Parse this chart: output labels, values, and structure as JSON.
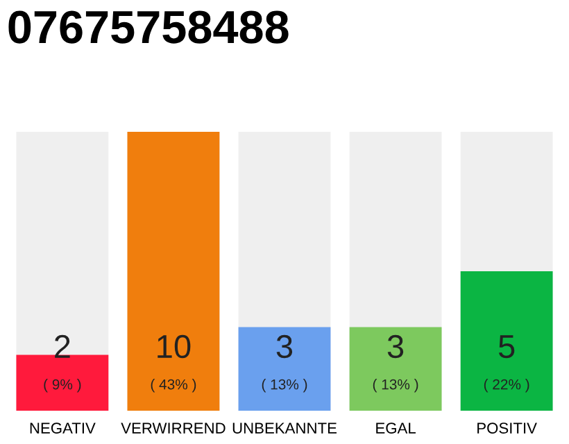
{
  "chart_data": {
    "type": "bar",
    "title": "07675758488",
    "categories": [
      "NEGATIV",
      "VERWIRREND",
      "UNBEKANNTE",
      "EGAL",
      "POSITIV"
    ],
    "values": [
      2,
      10,
      3,
      3,
      5
    ],
    "colors": [
      "#ff1a3c",
      "#f07e0d",
      "#6aa0ee",
      "#7dc95e",
      "#0bb543"
    ],
    "value_labels": [
      "2\n( 9% )",
      "10\n( 43% )",
      "3\n( 13% )",
      "3\n( 13% )",
      "5\n( 22% )"
    ],
    "grid": false,
    "legend": false
  }
}
